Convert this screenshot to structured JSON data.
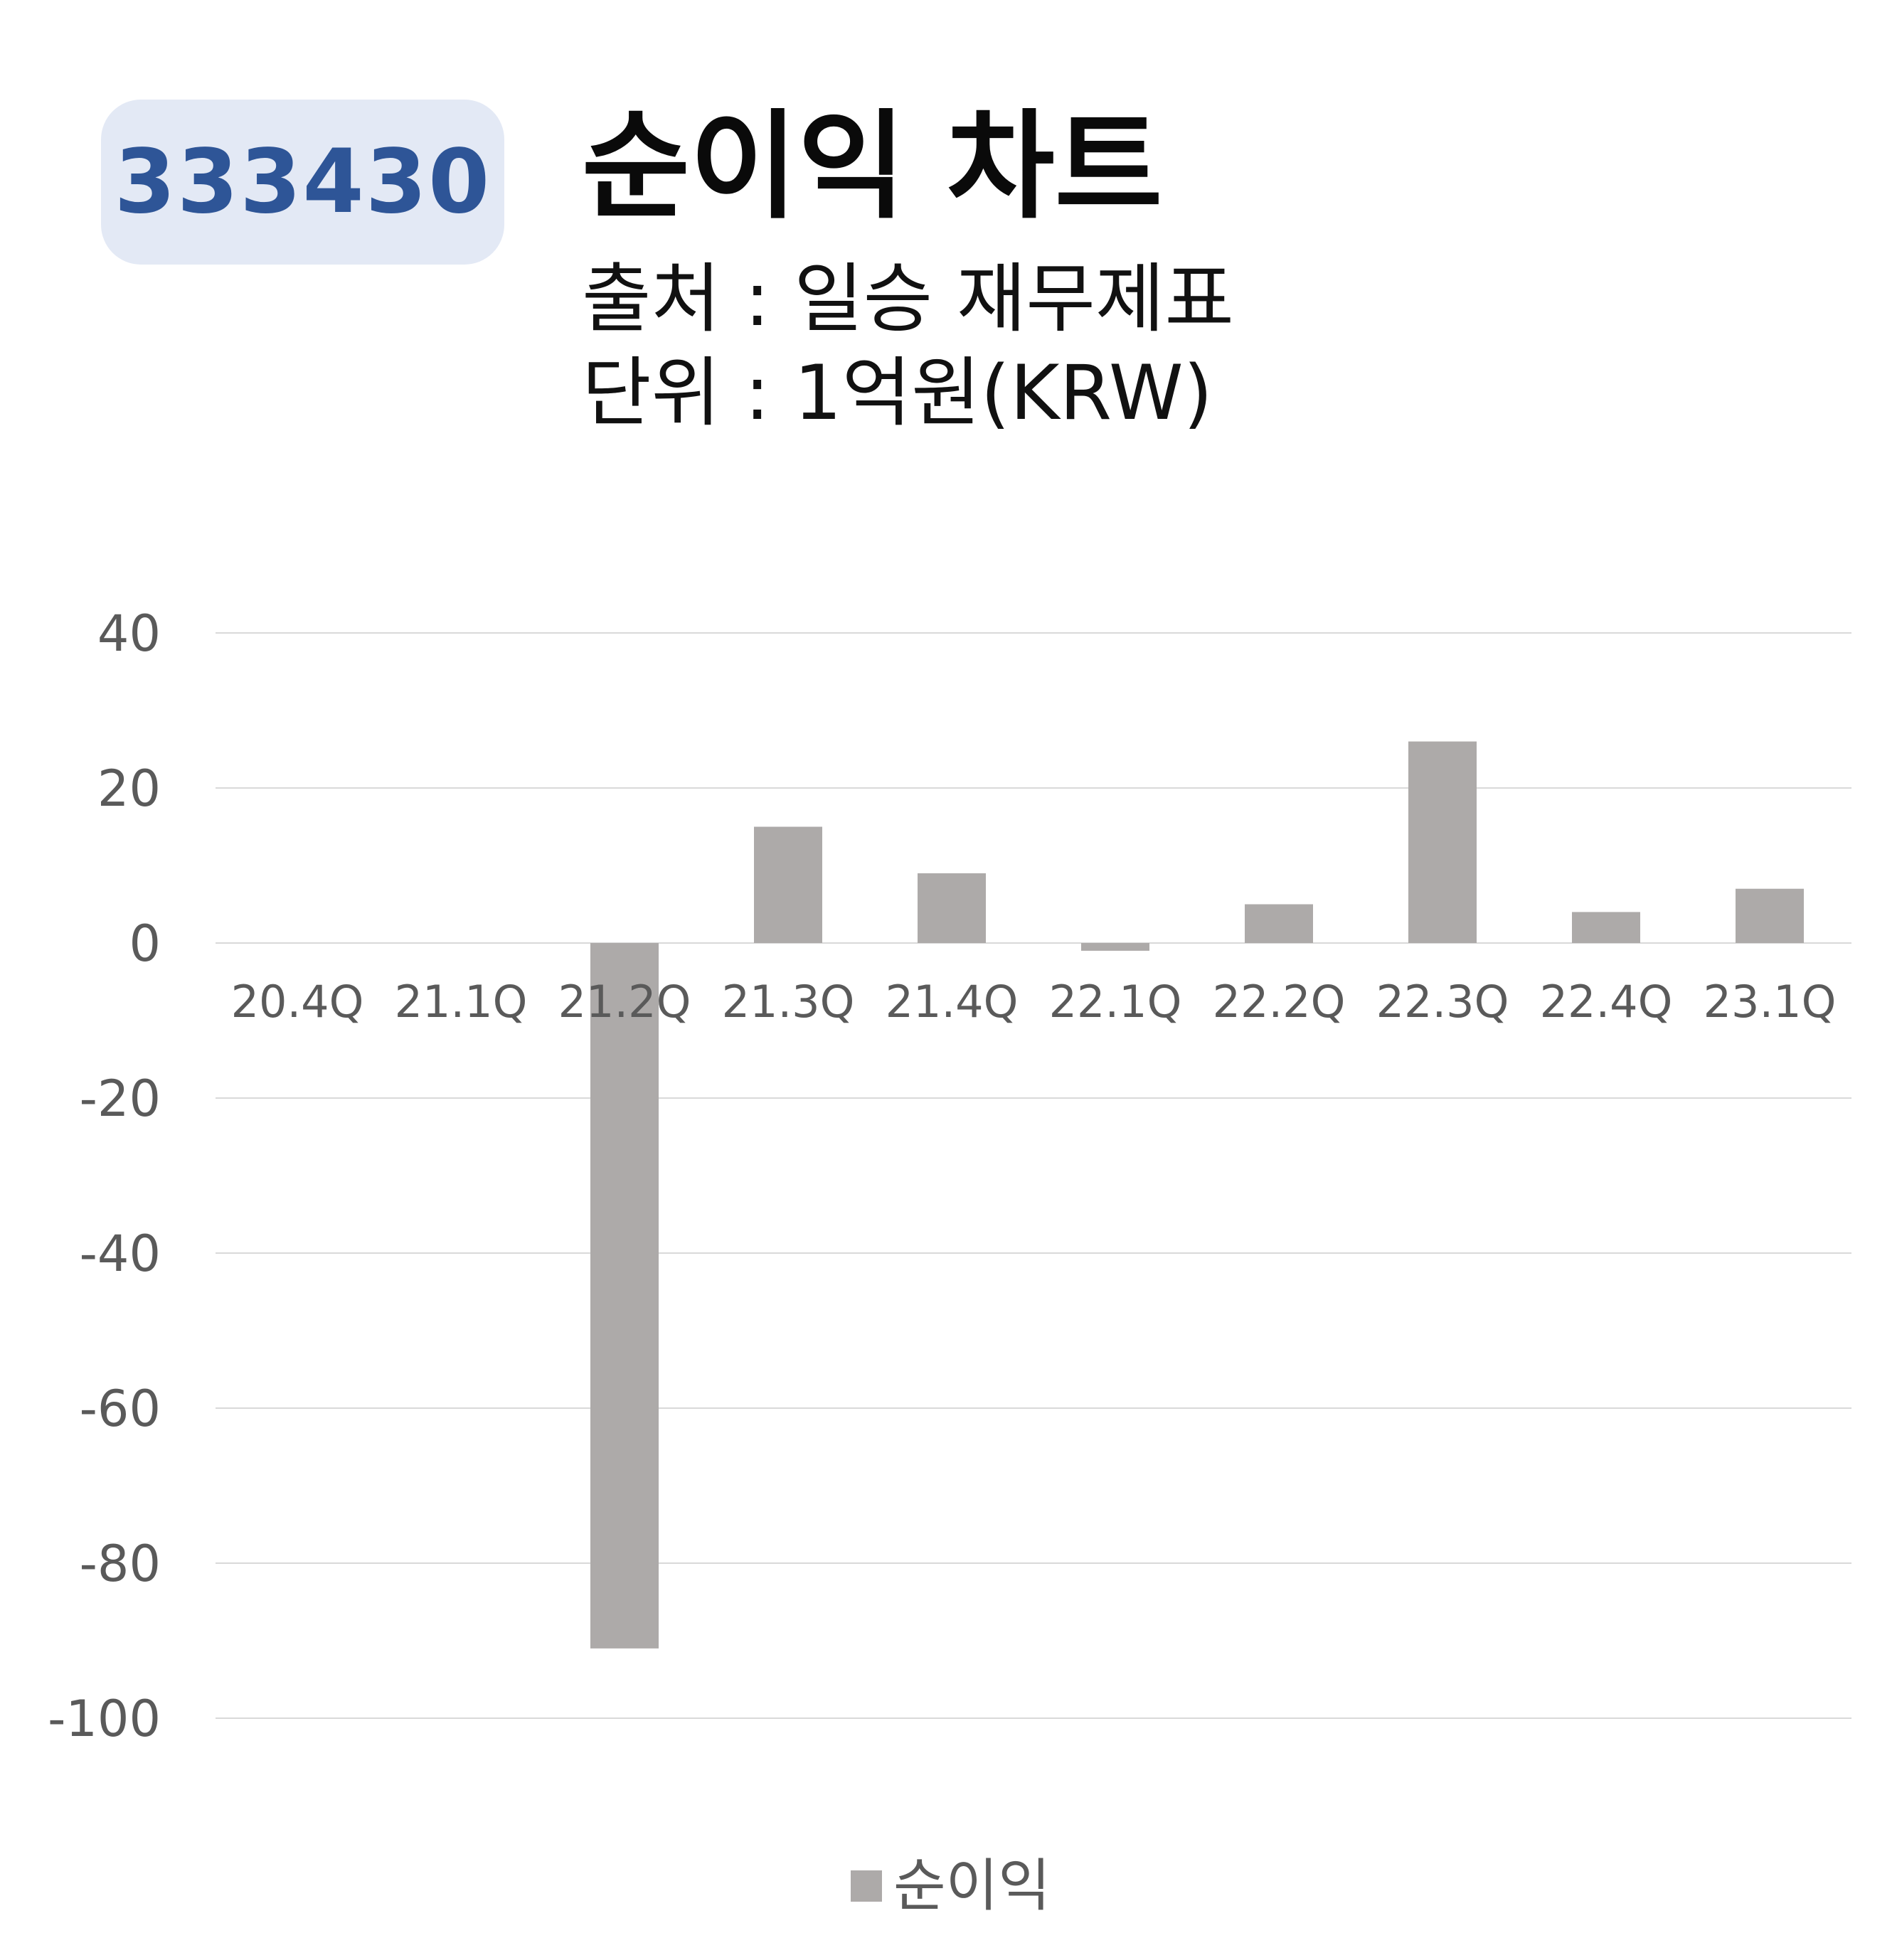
{
  "badge": {
    "code": "333430"
  },
  "header": {
    "title": "순이익 차트",
    "source": "출처 : 일승 재무제표",
    "unit": "단위 : 1억원(KRW)"
  },
  "colors": {
    "bar": "#adaaa9",
    "badge_bg": "#e3e9f5",
    "badge_text": "#2e5597"
  },
  "chart_data": {
    "type": "bar",
    "title": "순이익 차트",
    "categories": [
      "20.4Q",
      "21.1Q",
      "21.2Q",
      "21.3Q",
      "21.4Q",
      "22.1Q",
      "22.2Q",
      "22.3Q",
      "22.4Q",
      "23.1Q"
    ],
    "series": [
      {
        "name": "순이익",
        "values": [
          0,
          0,
          -91,
          15,
          9,
          -1,
          5,
          26,
          4,
          7
        ]
      }
    ],
    "ylim": [
      -100,
      40
    ],
    "yticks": [
      40,
      20,
      0,
      -20,
      -40,
      -60,
      -80,
      -100
    ],
    "ytick_labels": [
      "40",
      "20",
      "0",
      "-20",
      "-40",
      "-60",
      "-80",
      "-100"
    ],
    "grid": true,
    "legend": "bottom-center"
  }
}
